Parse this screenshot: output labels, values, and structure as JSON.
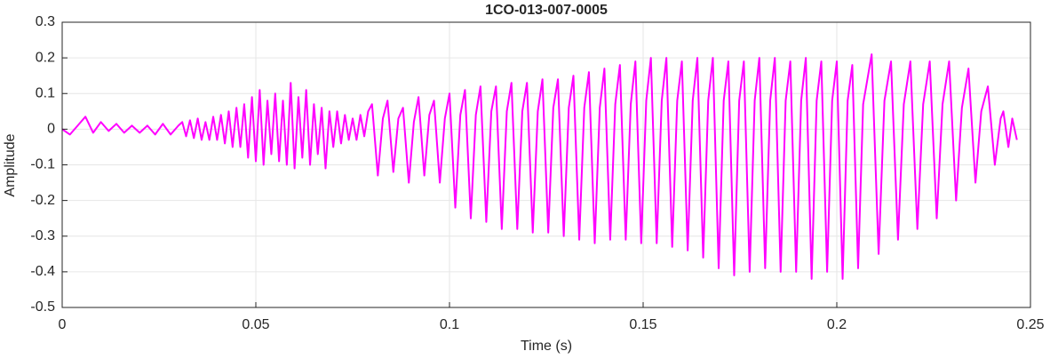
{
  "chart_data": {
    "type": "line",
    "title": "1CO-013-007-0005",
    "xlabel": "Time (s)",
    "ylabel": "Amplitude",
    "color": "#ff00ff",
    "grid": true,
    "xlim": [
      0,
      0.25
    ],
    "ylim": [
      -0.5,
      0.3
    ],
    "xticks": [
      0,
      0.05,
      0.1,
      0.15,
      0.2,
      0.25
    ],
    "yticks": [
      -0.5,
      -0.4,
      -0.3,
      -0.2,
      -0.1,
      0,
      0.1,
      0.2,
      0.3
    ],
    "x": [
      0,
      0.002,
      0.004,
      0.006,
      0.008,
      0.01,
      0.012,
      0.014,
      0.016,
      0.018,
      0.02,
      0.022,
      0.024,
      0.026,
      0.028,
      0.03,
      0.031,
      0.032,
      0.033,
      0.034,
      0.035,
      0.036,
      0.037,
      0.038,
      0.039,
      0.04,
      0.041,
      0.042,
      0.043,
      0.044,
      0.045,
      0.046,
      0.047,
      0.048,
      0.049,
      0.05,
      0.051,
      0.052,
      0.053,
      0.054,
      0.055,
      0.056,
      0.057,
      0.058,
      0.059,
      0.06,
      0.061,
      0.062,
      0.063,
      0.064,
      0.065,
      0.066,
      0.067,
      0.068,
      0.069,
      0.07,
      0.071,
      0.072,
      0.073,
      0.074,
      0.075,
      0.076,
      0.077,
      0.078,
      0.079,
      0.08,
      0.0815,
      0.0828,
      0.084,
      0.0855,
      0.0868,
      0.088,
      0.0895,
      0.0908,
      0.092,
      0.0935,
      0.0948,
      0.096,
      0.0975,
      0.0988,
      0.1,
      0.1015,
      0.1028,
      0.104,
      0.1055,
      0.1068,
      0.108,
      0.1095,
      0.1108,
      0.112,
      0.1135,
      0.1148,
      0.116,
      0.1175,
      0.1188,
      0.12,
      0.1215,
      0.1228,
      0.124,
      0.1255,
      0.1268,
      0.128,
      0.1295,
      0.1308,
      0.132,
      0.1335,
      0.1348,
      0.136,
      0.1375,
      0.1388,
      0.14,
      0.1415,
      0.1428,
      0.144,
      0.1455,
      0.1468,
      0.148,
      0.1495,
      0.1508,
      0.152,
      0.1535,
      0.1548,
      0.156,
      0.1575,
      0.1588,
      0.16,
      0.1615,
      0.1628,
      0.164,
      0.1655,
      0.1668,
      0.168,
      0.1695,
      0.1708,
      0.172,
      0.1735,
      0.1748,
      0.176,
      0.1775,
      0.1788,
      0.18,
      0.1815,
      0.1828,
      0.184,
      0.1855,
      0.1868,
      0.188,
      0.1895,
      0.1908,
      0.192,
      0.1935,
      0.1948,
      0.196,
      0.1975,
      0.1988,
      0.2,
      0.2015,
      0.2028,
      0.204,
      0.2055,
      0.2068,
      0.209,
      0.2108,
      0.2123,
      0.214,
      0.2158,
      0.2173,
      0.219,
      0.2208,
      0.2223,
      0.224,
      0.2258,
      0.2273,
      0.229,
      0.2308,
      0.2323,
      0.234,
      0.2358,
      0.2373,
      0.239,
      0.2408,
      0.2423,
      0.243,
      0.2443,
      0.2453,
      0.2465
    ],
    "values": [
      0,
      -0.015,
      0.01,
      0.035,
      -0.01,
      0.02,
      -0.005,
      0.015,
      -0.01,
      0.01,
      -0.01,
      0.01,
      -0.015,
      0.015,
      -0.015,
      0.01,
      0.02,
      -0.02,
      0.025,
      -0.025,
      0.03,
      -0.03,
      0.02,
      -0.03,
      0.035,
      -0.03,
      0.04,
      -0.04,
      0.05,
      -0.05,
      0.06,
      -0.05,
      0.07,
      -0.08,
      0.09,
      -0.09,
      0.11,
      -0.1,
      0.08,
      -0.07,
      0.1,
      -0.09,
      0.08,
      -0.1,
      0.13,
      -0.11,
      0.09,
      -0.08,
      0.11,
      -0.1,
      0.07,
      -0.07,
      0.06,
      -0.11,
      0.05,
      -0.05,
      0.05,
      -0.04,
      0.04,
      -0.03,
      0.03,
      -0.03,
      0.04,
      -0.02,
      0.05,
      0.07,
      -0.13,
      0.03,
      0.08,
      -0.12,
      0.03,
      0.06,
      -0.15,
      0.02,
      0.09,
      -0.13,
      0.04,
      0.08,
      -0.15,
      0.03,
      0.1,
      -0.22,
      0.04,
      0.11,
      -0.25,
      0.04,
      0.12,
      -0.26,
      0.05,
      0.12,
      -0.28,
      0.05,
      0.13,
      -0.28,
      0.05,
      0.13,
      -0.29,
      0.05,
      0.14,
      -0.29,
      0.06,
      0.14,
      -0.3,
      0.06,
      0.15,
      -0.31,
      0.06,
      0.16,
      -0.32,
      0.06,
      0.17,
      -0.31,
      0.07,
      0.18,
      -0.31,
      0.07,
      0.19,
      -0.32,
      0.08,
      0.2,
      -0.32,
      0.08,
      0.2,
      -0.33,
      0.08,
      0.19,
      -0.34,
      0.08,
      0.2,
      -0.36,
      0.08,
      0.2,
      -0.39,
      0.08,
      0.19,
      -0.41,
      0.08,
      0.19,
      -0.4,
      0.08,
      0.2,
      -0.39,
      0.08,
      0.2,
      -0.4,
      0.08,
      0.19,
      -0.4,
      0.08,
      0.2,
      -0.42,
      0.08,
      0.19,
      -0.4,
      0.08,
      0.19,
      -0.42,
      0.08,
      0.18,
      -0.39,
      0.07,
      0.21,
      -0.35,
      0.08,
      0.19,
      -0.31,
      0.07,
      0.19,
      -0.28,
      0.07,
      0.19,
      -0.25,
      0.07,
      0.19,
      -0.2,
      0.06,
      0.17,
      -0.15,
      0.05,
      0.12,
      -0.1,
      0.03,
      0.05,
      -0.05,
      0.03,
      -0.03
    ]
  }
}
